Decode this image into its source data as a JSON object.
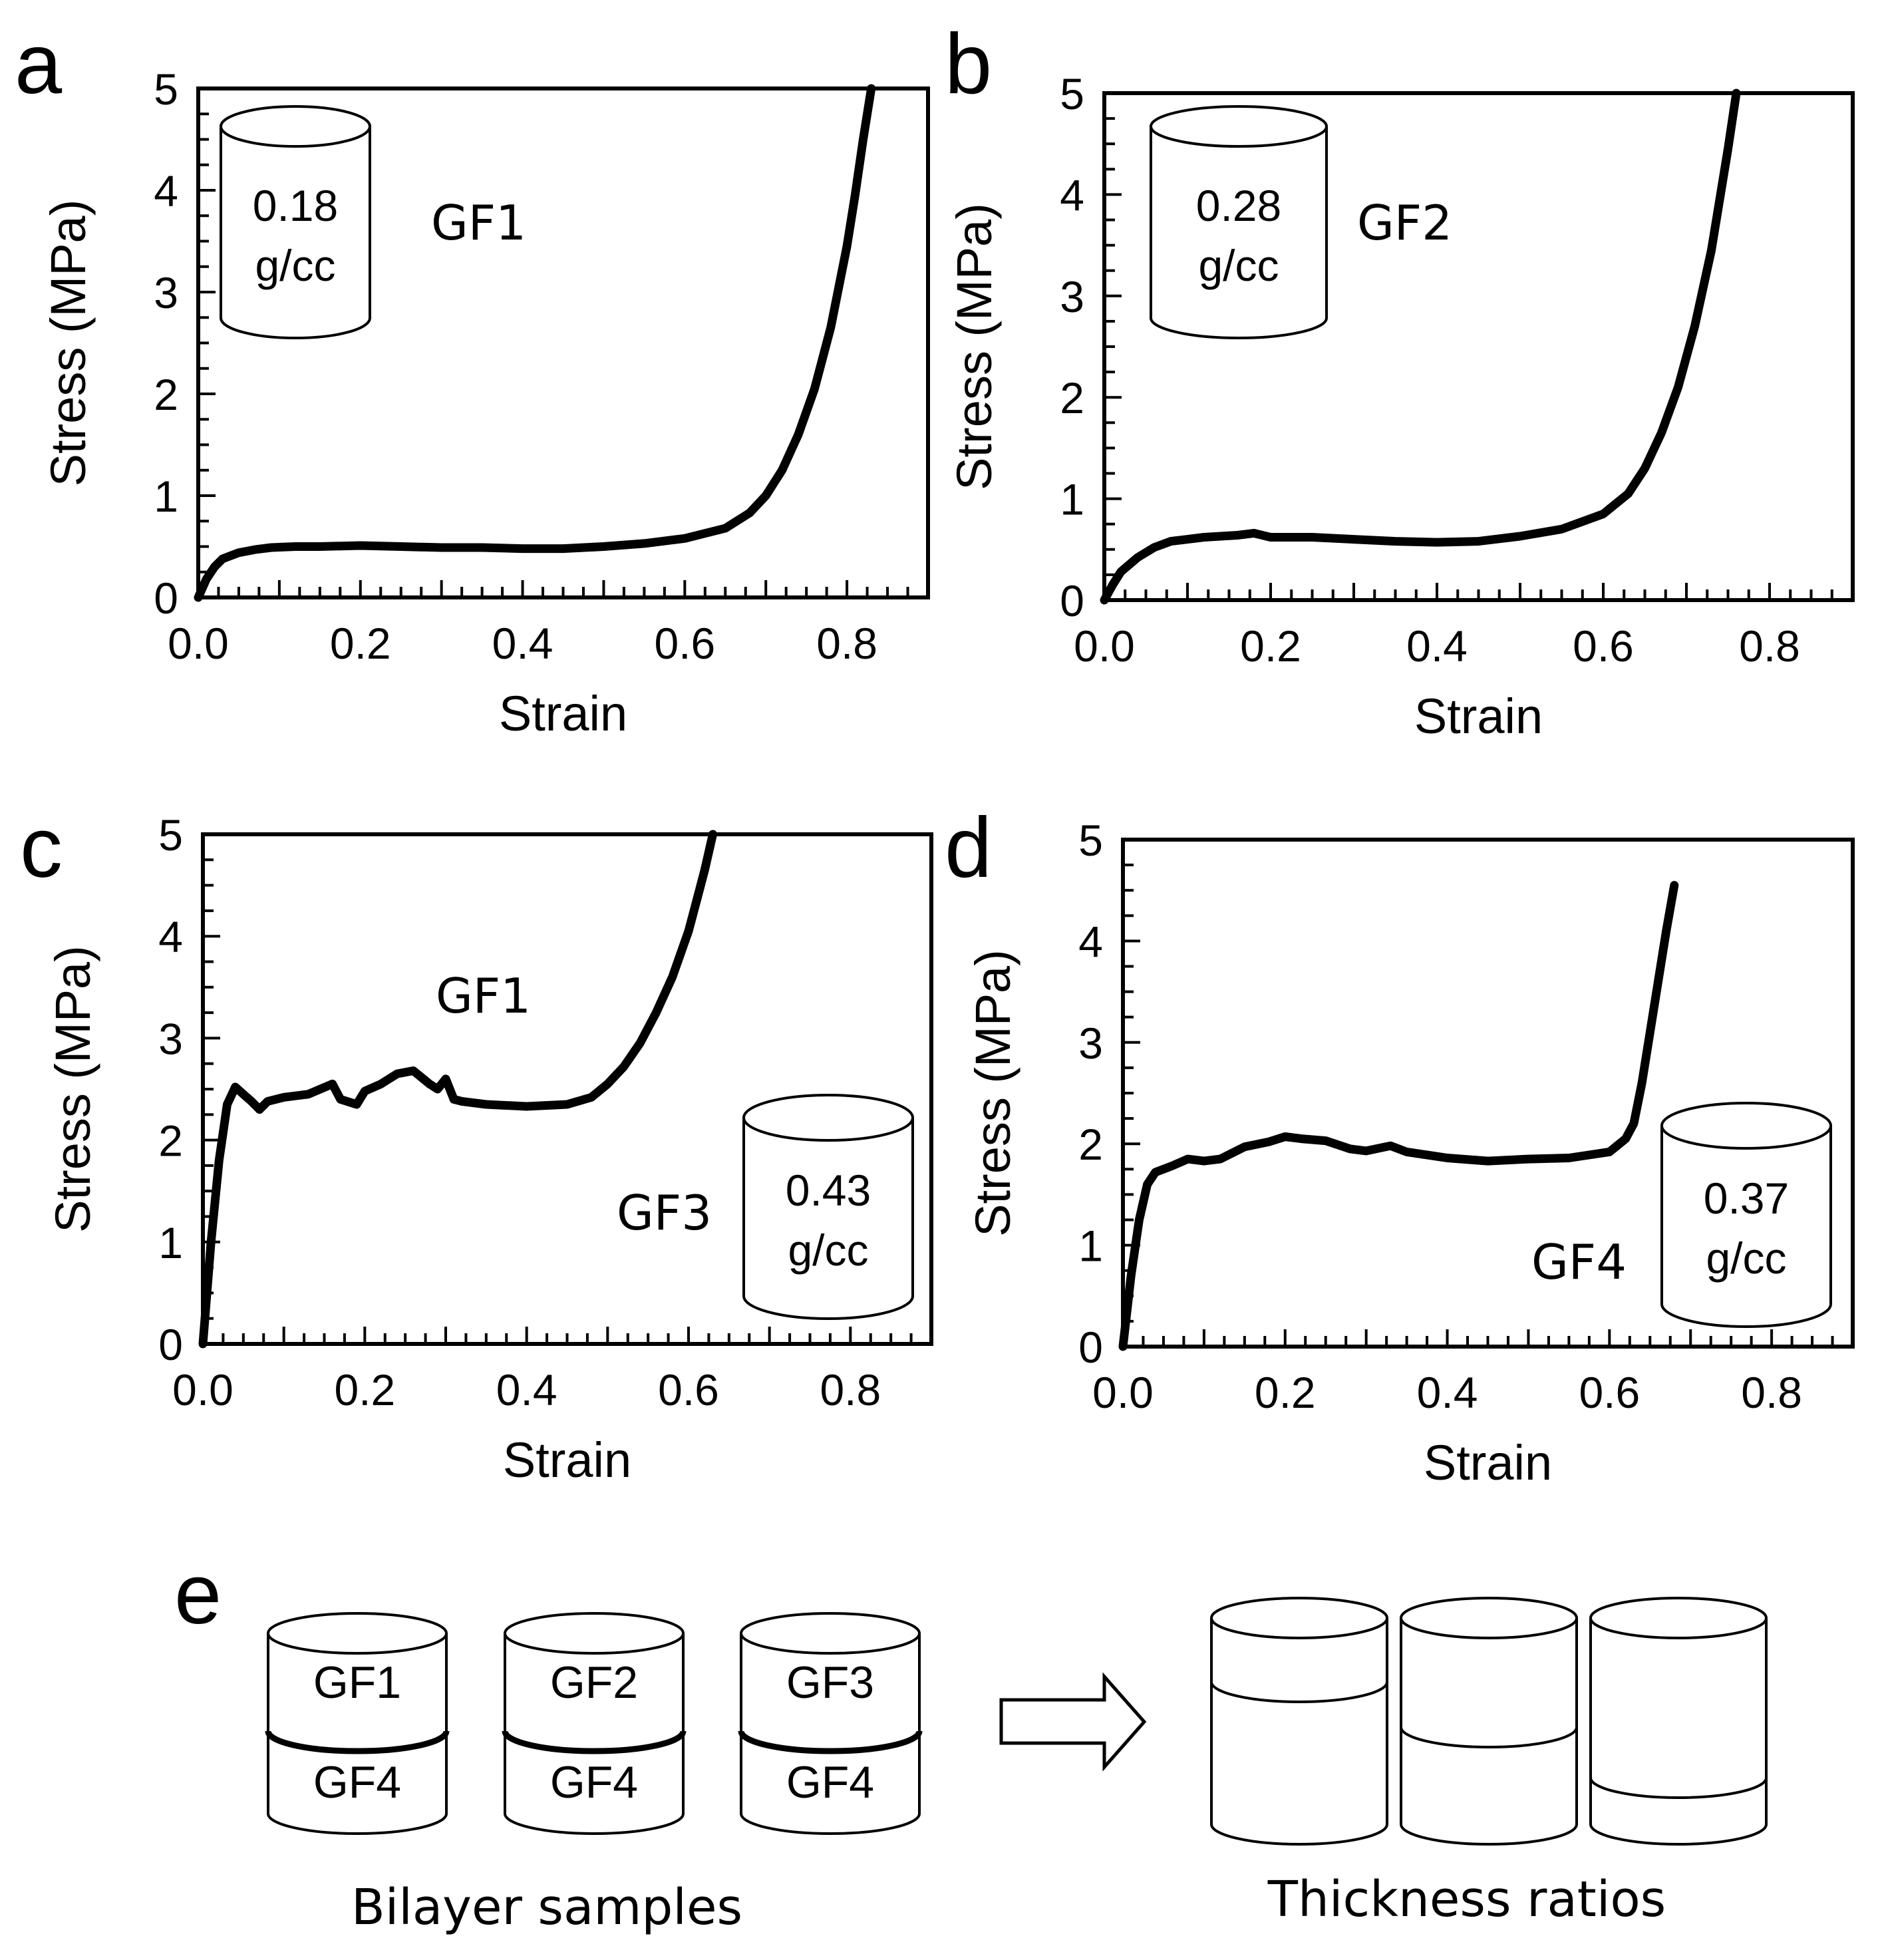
{
  "chart_data": [
    {
      "panel": "a",
      "type": "line",
      "xlabel": "Strain",
      "ylabel": "Stress (MPa)",
      "xlim": [
        0,
        0.9
      ],
      "ylim": [
        0,
        5
      ],
      "xticks": [
        "0.0",
        "0.2",
        "0.4",
        "0.6",
        "0.8"
      ],
      "yticks": [
        "0",
        "1",
        "2",
        "3",
        "4",
        "5"
      ],
      "grid": false,
      "series": [
        {
          "x": [
            0,
            0.01,
            0.02,
            0.03,
            0.05,
            0.07,
            0.09,
            0.12,
            0.15,
            0.2,
            0.25,
            0.3,
            0.35,
            0.4,
            0.45,
            0.5,
            0.55,
            0.6,
            0.65,
            0.68,
            0.7,
            0.72,
            0.74,
            0.76,
            0.78,
            0.8,
            0.81,
            0.82,
            0.83
          ],
          "y": [
            0,
            0.18,
            0.3,
            0.38,
            0.44,
            0.47,
            0.49,
            0.5,
            0.5,
            0.51,
            0.5,
            0.49,
            0.49,
            0.48,
            0.48,
            0.5,
            0.53,
            0.58,
            0.68,
            0.83,
            1.0,
            1.25,
            1.6,
            2.05,
            2.65,
            3.45,
            3.95,
            4.5,
            5.0
          ]
        }
      ],
      "annotations": [
        "GF1"
      ],
      "density": [
        "0.18",
        "g/cc"
      ]
    },
    {
      "panel": "b",
      "type": "line",
      "xlabel": "Strain",
      "ylabel": "Stress (MPa)",
      "xlim": [
        0,
        0.9
      ],
      "ylim": [
        0,
        5
      ],
      "xticks": [
        "0.0",
        "0.2",
        "0.4",
        "0.6",
        "0.8"
      ],
      "yticks": [
        "0",
        "1",
        "2",
        "3",
        "4",
        "5"
      ],
      "grid": false,
      "series": [
        {
          "x": [
            0,
            0.01,
            0.02,
            0.04,
            0.06,
            0.08,
            0.1,
            0.12,
            0.14,
            0.16,
            0.18,
            0.2,
            0.25,
            0.3,
            0.35,
            0.4,
            0.45,
            0.5,
            0.55,
            0.6,
            0.63,
            0.65,
            0.67,
            0.69,
            0.71,
            0.73,
            0.74,
            0.75,
            0.76
          ],
          "y": [
            0,
            0.15,
            0.28,
            0.42,
            0.52,
            0.58,
            0.6,
            0.62,
            0.63,
            0.64,
            0.66,
            0.62,
            0.62,
            0.6,
            0.58,
            0.57,
            0.58,
            0.63,
            0.7,
            0.85,
            1.05,
            1.3,
            1.65,
            2.1,
            2.7,
            3.45,
            3.95,
            4.45,
            5.0
          ]
        }
      ],
      "annotations": [
        "GF2"
      ],
      "density": [
        "0.28",
        "g/cc"
      ]
    },
    {
      "panel": "c",
      "type": "line",
      "xlabel": "Strain",
      "ylabel": "Stress (MPa)",
      "xlim": [
        0,
        0.9
      ],
      "ylim": [
        0,
        5
      ],
      "xticks": [
        "0.0",
        "0.2",
        "0.4",
        "0.6",
        "0.8"
      ],
      "yticks": [
        "0",
        "1",
        "2",
        "3",
        "4",
        "5"
      ],
      "grid": false,
      "series": [
        {
          "x": [
            0,
            0.01,
            0.02,
            0.03,
            0.04,
            0.05,
            0.06,
            0.07,
            0.08,
            0.1,
            0.13,
            0.16,
            0.17,
            0.19,
            0.2,
            0.22,
            0.24,
            0.26,
            0.28,
            0.29,
            0.3,
            0.31,
            0.32,
            0.35,
            0.4,
            0.45,
            0.48,
            0.5,
            0.52,
            0.54,
            0.56,
            0.58,
            0.6,
            0.61,
            0.62,
            0.63
          ],
          "y": [
            0,
            1.0,
            1.8,
            2.35,
            2.52,
            2.45,
            2.38,
            2.3,
            2.38,
            2.42,
            2.45,
            2.55,
            2.4,
            2.35,
            2.48,
            2.55,
            2.65,
            2.68,
            2.55,
            2.5,
            2.6,
            2.4,
            2.38,
            2.35,
            2.33,
            2.35,
            2.42,
            2.55,
            2.72,
            2.95,
            3.25,
            3.6,
            4.05,
            4.35,
            4.65,
            5.0
          ]
        }
      ],
      "annotations": [
        "GF1",
        "GF3"
      ],
      "density": [
        "0.43",
        "g/cc"
      ]
    },
    {
      "panel": "d",
      "type": "line",
      "xlabel": "Strain",
      "ylabel": "Stress (MPa)",
      "xlim": [
        0,
        0.9
      ],
      "ylim": [
        0,
        5
      ],
      "xticks": [
        "0.0",
        "0.2",
        "0.4",
        "0.6",
        "0.8"
      ],
      "yticks": [
        "0",
        "1",
        "2",
        "3",
        "4",
        "5"
      ],
      "grid": false,
      "series": [
        {
          "x": [
            0,
            0.01,
            0.02,
            0.03,
            0.04,
            0.06,
            0.08,
            0.1,
            0.12,
            0.15,
            0.18,
            0.2,
            0.22,
            0.25,
            0.28,
            0.3,
            0.33,
            0.35,
            0.4,
            0.45,
            0.5,
            0.55,
            0.6,
            0.62,
            0.63,
            0.64,
            0.65,
            0.66,
            0.67,
            0.68
          ],
          "y": [
            0,
            0.7,
            1.25,
            1.6,
            1.72,
            1.78,
            1.85,
            1.83,
            1.85,
            1.97,
            2.02,
            2.07,
            2.05,
            2.03,
            1.95,
            1.93,
            1.98,
            1.92,
            1.86,
            1.83,
            1.85,
            1.86,
            1.92,
            2.05,
            2.2,
            2.6,
            3.1,
            3.6,
            4.1,
            4.55
          ]
        }
      ],
      "annotations": [
        "GF4"
      ],
      "density": [
        "0.37",
        "g/cc"
      ]
    }
  ],
  "panel_letters": [
    "a",
    "b",
    "c",
    "d",
    "e"
  ],
  "schematic_e": {
    "bilayers": [
      {
        "top": "GF1",
        "bottom": "GF4"
      },
      {
        "top": "GF2",
        "bottom": "GF4"
      },
      {
        "top": "GF3",
        "bottom": "GF4"
      }
    ],
    "left_caption": "Bilayer samples",
    "right_caption": "Thickness ratios"
  }
}
